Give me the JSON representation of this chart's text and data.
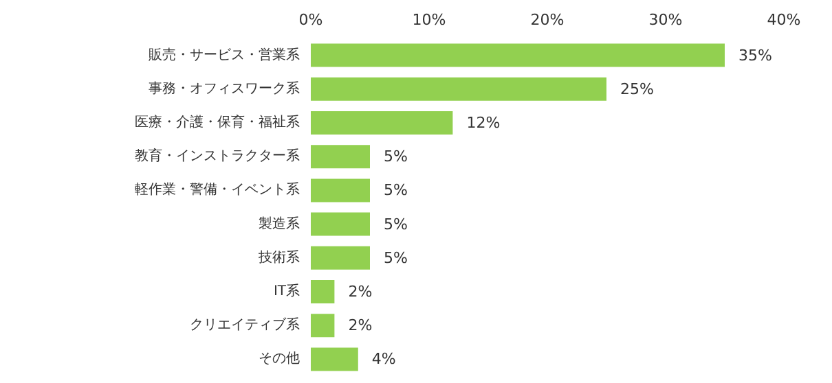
{
  "chart_data": {
    "type": "bar",
    "orientation": "horizontal",
    "categories": [
      "販売・サービス・営業系",
      "事務・オフィスワーク系",
      "医療・介護・保育・福祉系",
      "教育・インストラクター系",
      "軽作業・警備・イベント系",
      "製造系",
      "技術系",
      "IT系",
      "クリエイティブ系",
      "その他"
    ],
    "values": [
      35,
      25,
      12,
      5,
      5,
      5,
      5,
      2,
      2,
      4
    ],
    "value_labels": [
      "35%",
      "25%",
      "12%",
      "5%",
      "5%",
      "5%",
      "5%",
      "2%",
      "2%",
      "4%"
    ],
    "color": "#92d050",
    "xlim": [
      0,
      40
    ],
    "xticks": [
      {
        "value": 0,
        "label": "0%"
      },
      {
        "value": 10,
        "label": "10%"
      },
      {
        "value": 20,
        "label": "20%"
      },
      {
        "value": 30,
        "label": "30%"
      },
      {
        "value": 40,
        "label": "40%"
      }
    ],
    "grid": false
  }
}
